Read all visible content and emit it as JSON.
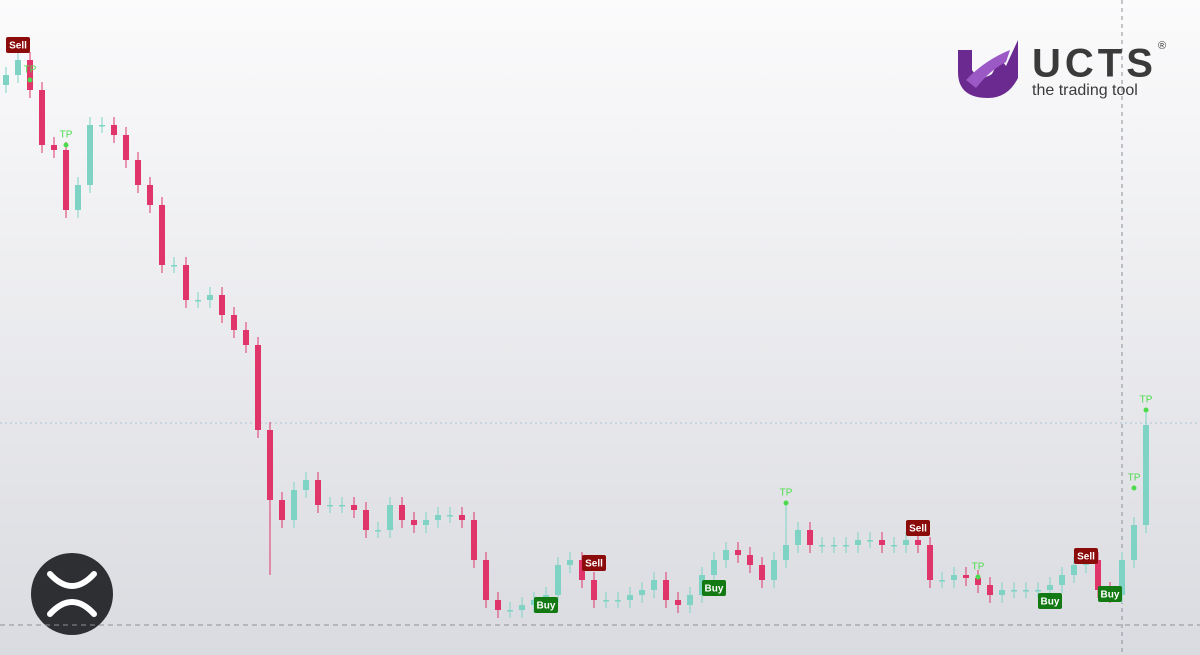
{
  "chart_data": {
    "type": "candlestick",
    "ylim": [
      0,
      655
    ],
    "up_color": "#7fd3c4",
    "down_color": "#e0356a",
    "open": [
      570,
      580,
      595,
      565,
      510,
      505,
      445,
      470,
      530,
      530,
      520,
      495,
      470,
      450,
      390,
      390,
      355,
      355,
      360,
      340,
      325,
      310,
      225,
      155,
      135,
      165,
      175,
      150,
      150,
      150,
      145,
      125,
      125,
      150,
      135,
      130,
      135,
      140,
      140,
      135,
      95,
      55,
      45,
      45,
      50,
      55,
      60,
      90,
      95,
      75,
      55,
      55,
      55,
      60,
      65,
      75,
      55,
      50,
      60,
      80,
      95,
      105,
      100,
      90,
      75,
      95,
      110,
      125,
      110,
      110,
      110,
      110,
      115,
      115,
      110,
      110,
      115,
      110,
      75,
      75,
      80,
      77,
      70,
      60,
      65,
      65,
      65,
      65,
      70,
      80,
      90,
      95,
      65,
      60,
      95,
      130
    ],
    "high": [
      588,
      603,
      603,
      573,
      518,
      513,
      478,
      538,
      538,
      538,
      528,
      503,
      478,
      458,
      398,
      398,
      363,
      368,
      368,
      348,
      333,
      318,
      233,
      163,
      173,
      183,
      183,
      158,
      158,
      158,
      153,
      133,
      158,
      158,
      143,
      143,
      148,
      148,
      148,
      143,
      103,
      63,
      53,
      58,
      63,
      68,
      98,
      103,
      103,
      83,
      63,
      63,
      68,
      73,
      83,
      83,
      63,
      68,
      88,
      103,
      113,
      113,
      108,
      98,
      103,
      150,
      133,
      133,
      118,
      118,
      118,
      123,
      123,
      123,
      118,
      123,
      123,
      118,
      83,
      88,
      88,
      85,
      78,
      73,
      73,
      73,
      73,
      78,
      88,
      98,
      103,
      103,
      73,
      103,
      138,
      245
    ],
    "low": [
      562,
      572,
      557,
      502,
      497,
      437,
      437,
      462,
      522,
      512,
      487,
      462,
      442,
      382,
      382,
      347,
      347,
      347,
      332,
      317,
      302,
      217,
      80,
      127,
      127,
      157,
      142,
      142,
      142,
      137,
      117,
      117,
      117,
      127,
      122,
      122,
      127,
      132,
      127,
      87,
      47,
      37,
      37,
      37,
      42,
      47,
      52,
      82,
      67,
      47,
      47,
      47,
      47,
      52,
      57,
      47,
      42,
      42,
      52,
      72,
      87,
      92,
      82,
      67,
      67,
      87,
      102,
      102,
      102,
      102,
      102,
      102,
      107,
      102,
      102,
      102,
      102,
      67,
      67,
      67,
      69,
      62,
      52,
      52,
      57,
      57,
      57,
      57,
      62,
      72,
      82,
      57,
      52,
      52,
      87,
      122
    ],
    "close": [
      580,
      595,
      565,
      510,
      505,
      445,
      470,
      530,
      530,
      520,
      495,
      470,
      450,
      390,
      390,
      355,
      355,
      360,
      340,
      325,
      310,
      225,
      155,
      135,
      165,
      175,
      150,
      150,
      150,
      145,
      125,
      125,
      150,
      135,
      130,
      135,
      140,
      140,
      135,
      95,
      55,
      45,
      45,
      50,
      55,
      60,
      90,
      95,
      75,
      55,
      55,
      55,
      60,
      65,
      75,
      55,
      50,
      60,
      80,
      95,
      105,
      100,
      90,
      75,
      95,
      110,
      125,
      110,
      110,
      110,
      110,
      115,
      115,
      110,
      110,
      115,
      110,
      75,
      75,
      80,
      77,
      70,
      60,
      65,
      65,
      65,
      65,
      70,
      80,
      90,
      95,
      65,
      60,
      95,
      130,
      230
    ],
    "price_lines": [
      232,
      30
    ],
    "signals": [
      {
        "label": "Sell",
        "index": 1,
        "value": 610
      },
      {
        "label": "TP",
        "index": 2,
        "value": 585
      },
      {
        "label": "TP",
        "index": 5,
        "value": 520
      },
      {
        "label": "Buy",
        "index": 45,
        "value": 50
      },
      {
        "label": "Sell",
        "index": 49,
        "value": 92
      },
      {
        "label": "Buy",
        "index": 59,
        "value": 67
      },
      {
        "label": "TP",
        "index": 65,
        "value": 162
      },
      {
        "label": "Sell",
        "index": 76,
        "value": 127
      },
      {
        "label": "TP",
        "index": 81,
        "value": 88
      },
      {
        "label": "Buy",
        "index": 87,
        "value": 54
      },
      {
        "label": "Sell",
        "index": 90,
        "value": 99
      },
      {
        "label": "Buy",
        "index": 92,
        "value": 61
      },
      {
        "label": "TP",
        "index": 94,
        "value": 177
      },
      {
        "label": "TP",
        "index": 95,
        "value": 255
      }
    ]
  },
  "logo": {
    "name": "UCTS",
    "registered": "®",
    "tagline": "the trading tool"
  }
}
